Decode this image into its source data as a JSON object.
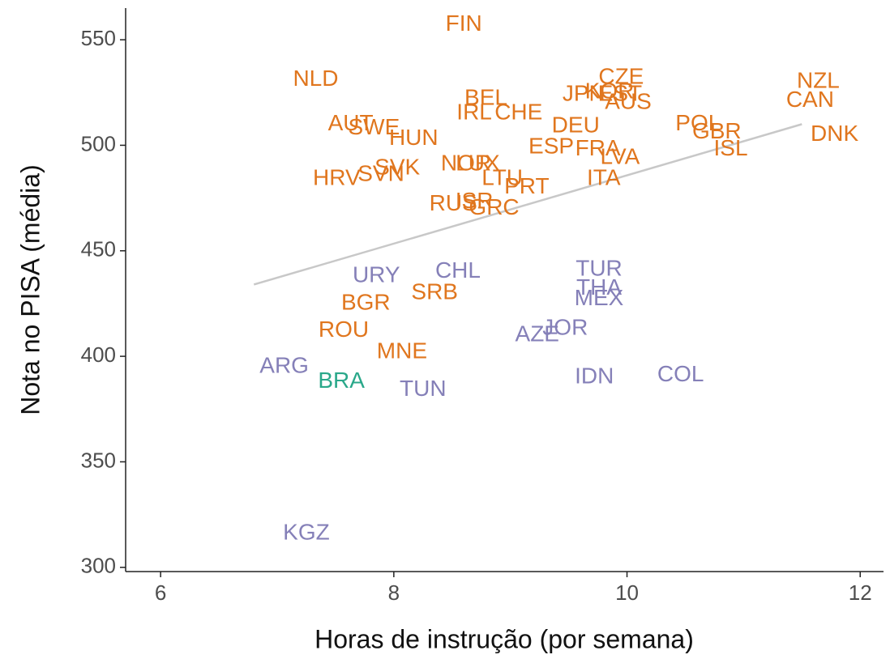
{
  "chart_data": {
    "type": "scatter",
    "x_label": "Horas de instrução (por semana)",
    "y_label": "Nota no PISA (média)",
    "xlim": [
      5.7,
      12.2
    ],
    "ylim": [
      298,
      565
    ],
    "xticks": [
      6,
      8,
      10,
      12
    ],
    "yticks": [
      300,
      350,
      400,
      450,
      500,
      550
    ],
    "grid": false,
    "series": [
      {
        "color": "#e0761e",
        "labels": [
          "FIN",
          "NLD",
          "CZE",
          "NZL",
          "CAN",
          "BEL",
          "JPN",
          "KOR",
          "EST",
          "AUS",
          "IRL",
          "CHE",
          "DEU",
          "AUT",
          "SWE",
          "HUN",
          "POL",
          "GBR",
          "ISL",
          "DNK",
          "ESP",
          "FRA",
          "LVA",
          "NOR",
          "LUX",
          "LTU",
          "PRT",
          "ITA",
          "HRV",
          "SVK",
          "SVN",
          "RUS",
          "ISR",
          "GRC",
          "SRB",
          "BGR",
          "ROU",
          "MNE"
        ],
        "x": [
          8.6,
          7.33,
          9.95,
          11.64,
          11.57,
          8.79,
          9.63,
          9.85,
          9.94,
          10.01,
          8.69,
          9.07,
          9.56,
          7.63,
          7.83,
          8.17,
          10.61,
          10.77,
          10.89,
          11.78,
          9.35,
          9.75,
          9.94,
          8.62,
          8.72,
          8.93,
          9.14,
          9.8,
          7.51,
          8.03,
          7.89,
          8.51,
          8.69,
          8.86,
          8.35,
          7.76,
          7.57,
          8.07
        ],
        "values": [
          557,
          531,
          532,
          530,
          521,
          522,
          524,
          525,
          524,
          520,
          515,
          515,
          509,
          510,
          508,
          503,
          510,
          506,
          498,
          505,
          499,
          498,
          494,
          491,
          491,
          484,
          480,
          484,
          484,
          489,
          486,
          472,
          473,
          470,
          430,
          425,
          412,
          402
        ]
      },
      {
        "color": "#8580b8",
        "labels": [
          "URY",
          "CHL",
          "TUR",
          "THA",
          "MEX",
          "AZE",
          "JOR",
          "ARG",
          "TUN",
          "IDN",
          "COL",
          "KGZ"
        ],
        "x": [
          7.85,
          8.55,
          9.76,
          9.76,
          9.76,
          9.23,
          9.47,
          7.06,
          8.25,
          9.72,
          10.46,
          7.25
        ],
        "values": [
          438,
          440,
          441,
          432,
          427,
          410,
          413,
          395,
          384,
          390,
          391,
          316
        ]
      },
      {
        "color": "#2aa88a",
        "labels": [
          "BRA"
        ],
        "x": [
          7.55
        ],
        "values": [
          388
        ]
      }
    ],
    "trend_line": {
      "color": "#c8c8c8",
      "x": [
        6.8,
        11.5
      ],
      "values": [
        434,
        510
      ]
    }
  }
}
